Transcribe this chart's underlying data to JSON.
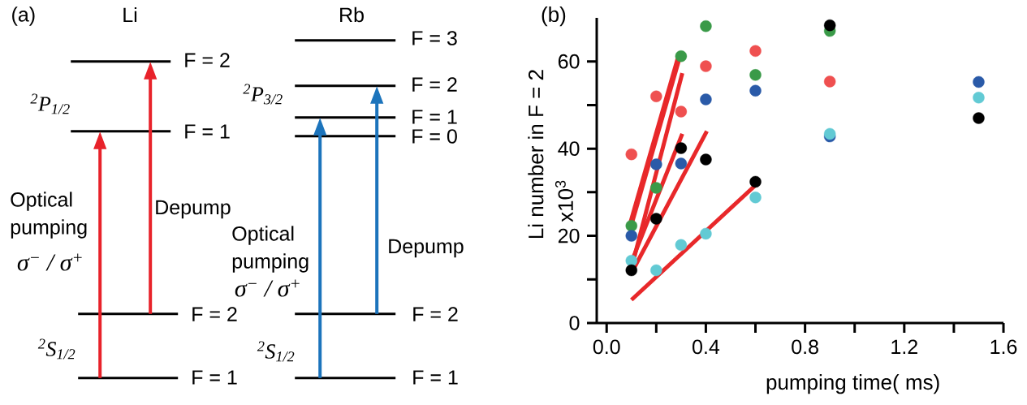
{
  "chart_data": [
    {
      "type": "other",
      "title": "(a)",
      "annotations": [
        "Li",
        "Rb",
        "F = 2",
        "F = 1",
        "F = 2",
        "F = 1",
        "F = 3",
        "F = 2",
        "F = 1",
        "F = 0",
        "F = 2",
        "F = 1",
        "$^{2}$P$_{1/2}$",
        "$^{2}$S$_{1/2}$",
        "$^{2}$P$_{3/2}$",
        "$^{2}$S$_{1/2}$",
        "Optical pumping",
        "σ$^{−}$ / σ$^{+}$",
        "Depump",
        "Optical pumping",
        "σ$^{−}$ / σ$^{+}$",
        "Depump"
      ]
    },
    {
      "type": "scatter",
      "title": "(b)",
      "xlabel": "pumping time( ms)",
      "ylabel": "Li number in F = 2",
      "annotations": [
        "x10$^{3}$"
      ],
      "xlim": [
        -0.04,
        1.6
      ],
      "ylim": [
        0,
        70
      ],
      "xticks": [
        {
          "value": 0,
          "label": "0.0"
        },
        {
          "value": 0.2,
          "label": null
        },
        {
          "value": 0.4,
          "label": "0.4"
        },
        {
          "value": 0.6,
          "label": null
        },
        {
          "value": 0.8,
          "label": "0.8"
        },
        {
          "value": 1.0,
          "label": null
        },
        {
          "value": 1.2,
          "label": "1.2"
        },
        {
          "value": 1.4,
          "label": null
        },
        {
          "value": 1.6,
          "label": "1.6"
        }
      ],
      "yticks": [
        0,
        {
          "value": 10,
          "label": null
        },
        20,
        {
          "value": 30,
          "label": null
        },
        40,
        {
          "value": 50,
          "label": null
        },
        60
      ],
      "grid": false,
      "marker": "circle",
      "series": [
        {
          "type": "line",
          "marker": "none",
          "color": "#e8282a",
          "x": [
            0.1,
            0.29
          ],
          "values": [
            23.2,
            60.7
          ]
        },
        {
          "type": "line",
          "marker": "none",
          "color": "#e8282a",
          "x": [
            0.11,
            0.305
          ],
          "values": [
            14.8,
            57.3
          ]
        },
        {
          "type": "line",
          "marker": "none",
          "color": "#e8282a",
          "x": [
            0.1,
            0.305
          ],
          "values": [
            14.0,
            43.4
          ]
        },
        {
          "type": "line",
          "marker": "none",
          "color": "#e8282a",
          "x": [
            0.105,
            0.404
          ],
          "values": [
            12.0,
            44.0
          ]
        },
        {
          "type": "line",
          "marker": "none",
          "color": "#e8282a",
          "x": [
            0.1,
            0.6
          ],
          "values": [
            5.3,
            31.6
          ]
        },
        {
          "color": "#ef5050",
          "x": [
            0.1,
            0.2,
            0.3,
            0.4,
            0.6,
            0.9
          ],
          "values": [
            38.7,
            52.0,
            48.5,
            58.9,
            62.4,
            55.4
          ]
        },
        {
          "color": "#3a9a48",
          "x": [
            0.1,
            0.2,
            0.3,
            0.4,
            0.6,
            0.9
          ],
          "values": [
            22.3,
            31.0,
            61.2,
            68.1,
            56.9,
            67.0
          ]
        },
        {
          "color": "#2a5aa8",
          "x": [
            0.1,
            0.2,
            0.3,
            0.4,
            0.6,
            0.9,
            1.5
          ],
          "values": [
            20.0,
            36.4,
            36.6,
            51.3,
            53.3,
            42.8,
            55.3
          ]
        },
        {
          "color": "#62cad4",
          "x": [
            0.1,
            0.2,
            0.3,
            0.4,
            0.6,
            0.9,
            1.5
          ],
          "values": [
            14.3,
            12.1,
            17.9,
            20.5,
            28.8,
            43.4,
            51.7
          ]
        },
        {
          "color": "#000000",
          "x": [
            0.1,
            0.2,
            0.3,
            0.4,
            0.6,
            0.9,
            1.5
          ],
          "values": [
            12.1,
            23.9,
            40.1,
            37.5,
            32.4,
            68.3,
            47.0
          ]
        }
      ]
    }
  ]
}
